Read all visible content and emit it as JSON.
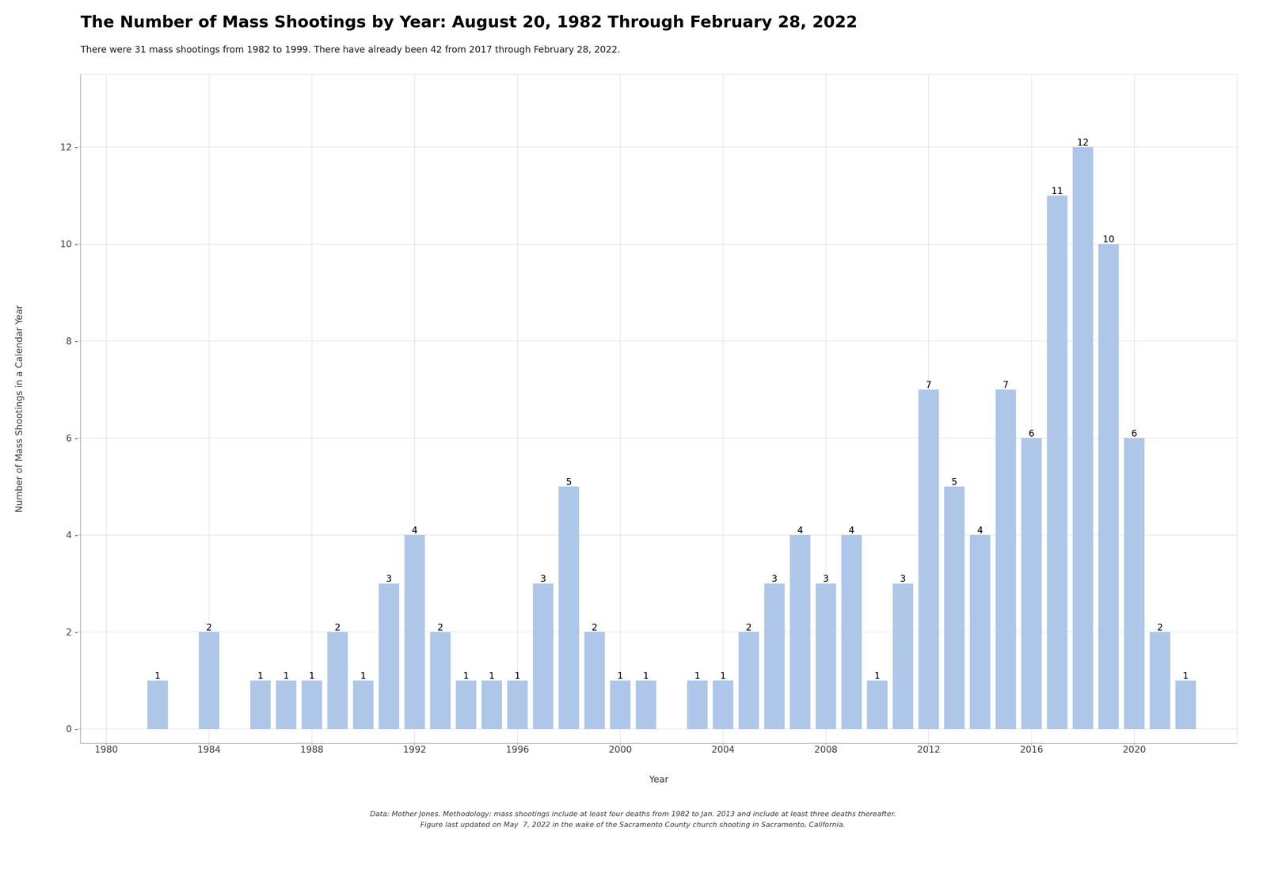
{
  "chart_data": {
    "type": "bar",
    "title": "The Number of Mass Shootings by Year: August 20, 1982 Through February 28, 2022",
    "subtitle": "There were 31 mass shootings from 1982 to 1999. There have already been 42 from 2017 through February 28, 2022.",
    "x_label": "Year",
    "y_label": "Number of Mass Shootings in a Calendar Year",
    "annotations": [
      "Data: Mother Jones. Methodology: mass shootings include at least four deaths from 1982 to Jan. 2013 and include at least three deaths thereafter.",
      "Figure last updated on May  7, 2022 in the wake of the Sacramento County church shooting in Sacramento, California."
    ],
    "x": [
      1982,
      1984,
      1986,
      1987,
      1988,
      1989,
      1990,
      1991,
      1992,
      1993,
      1994,
      1995,
      1996,
      1997,
      1998,
      1999,
      2000,
      2001,
      2003,
      2004,
      2005,
      2006,
      2007,
      2008,
      2009,
      2010,
      2011,
      2012,
      2013,
      2014,
      2015,
      2016,
      2017,
      2018,
      2019,
      2020,
      2021,
      2022
    ],
    "values": [
      1,
      2,
      1,
      1,
      1,
      2,
      1,
      3,
      4,
      2,
      1,
      1,
      1,
      3,
      5,
      2,
      1,
      1,
      1,
      1,
      2,
      3,
      4,
      3,
      4,
      1,
      3,
      7,
      5,
      4,
      7,
      6,
      11,
      12,
      10,
      6,
      2,
      1
    ],
    "color": "#aec6e8",
    "xlim": [
      1979.0,
      2024.0
    ],
    "ylim": [
      -0.3,
      13.5
    ],
    "xticks": [
      1980,
      1984,
      1988,
      1992,
      1996,
      2000,
      2004,
      2008,
      2012,
      2016,
      2020
    ],
    "yticks": [
      {
        "value": 0,
        "label": "0 -"
      },
      {
        "value": 2,
        "label": "2 -"
      },
      {
        "value": 4,
        "label": "4 -"
      },
      {
        "value": 6,
        "label": "6 -"
      },
      {
        "value": 8,
        "label": "8 -"
      },
      {
        "value": 10,
        "label": "10 -"
      },
      {
        "value": 12,
        "label": "12 -"
      }
    ],
    "grid": true,
    "data_labels": true
  }
}
